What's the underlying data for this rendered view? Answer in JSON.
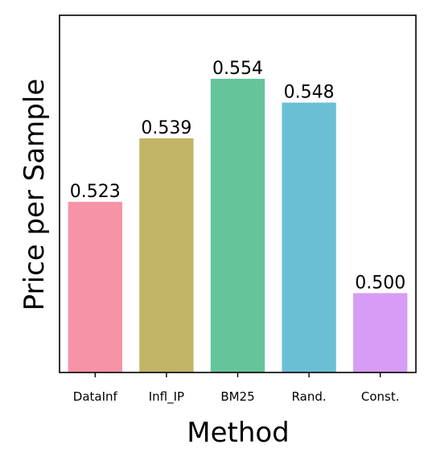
{
  "chart_data": {
    "type": "bar",
    "title": "",
    "xlabel": "Method",
    "ylabel": "Price per Sample",
    "categories": [
      "DataInf",
      "Infl_IP",
      "BM25",
      "Rand.",
      "Const."
    ],
    "values": [
      0.523,
      0.539,
      0.554,
      0.548,
      0.5
    ],
    "data_labels": [
      "0.523",
      "0.539",
      "0.554",
      "0.548",
      "0.500"
    ],
    "colors": [
      "#f793a6",
      "#c2b466",
      "#66c49b",
      "#6bbfd5",
      "#d79cf5"
    ],
    "ylim": [
      0.48,
      0.57
    ],
    "y_ticks_visible": false,
    "grid": false,
    "legend": "none"
  }
}
